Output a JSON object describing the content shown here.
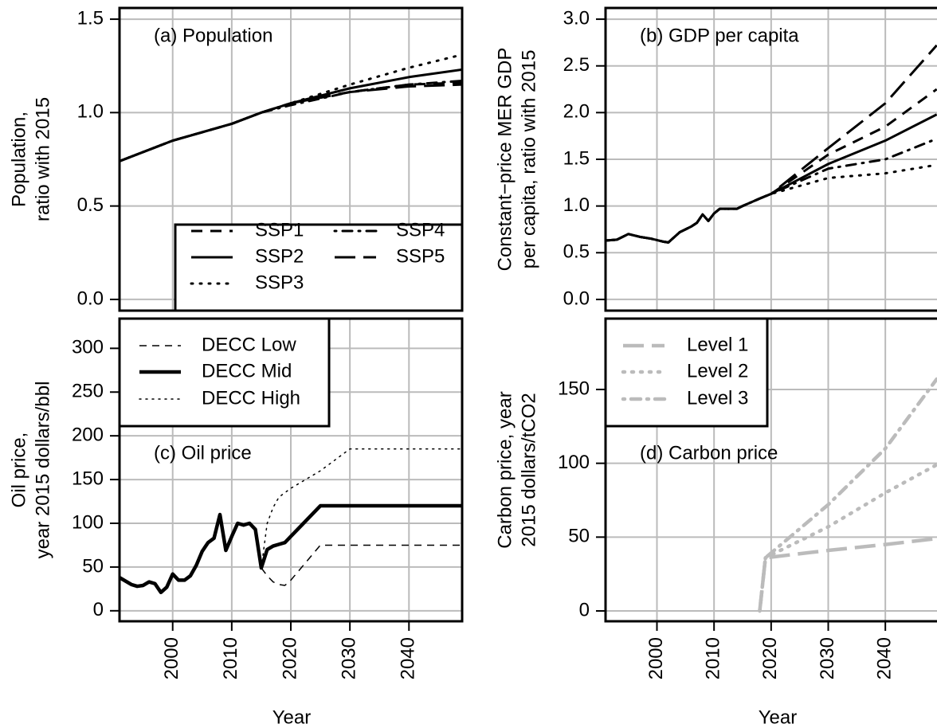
{
  "chart_data": [
    {
      "type": "line",
      "annotation": "(a) Population",
      "ylabel": [
        "Population,",
        "ratio with 2015"
      ],
      "x": [
        1991,
        2000,
        2010,
        2015,
        2020,
        2030,
        2040,
        2049
      ],
      "series": [
        {
          "name": "SSP1",
          "color": "#000000",
          "linestyle": "dashed",
          "values": [
            0.74,
            0.85,
            0.94,
            1.0,
            1.05,
            1.11,
            1.15,
            1.16
          ]
        },
        {
          "name": "SSP2",
          "color": "#000000",
          "linestyle": "solid",
          "values": [
            0.74,
            0.85,
            0.94,
            1.0,
            1.05,
            1.13,
            1.19,
            1.23
          ]
        },
        {
          "name": "SSP3",
          "color": "#000000",
          "linestyle": "dotted",
          "values": [
            0.74,
            0.85,
            0.94,
            1.0,
            1.05,
            1.15,
            1.24,
            1.31
          ]
        },
        {
          "name": "SSP4",
          "color": "#000000",
          "linestyle": "dotdash",
          "values": [
            0.74,
            0.85,
            0.94,
            1.0,
            1.04,
            1.11,
            1.15,
            1.17
          ]
        },
        {
          "name": "SSP5",
          "color": "#000000",
          "linestyle": "longdash",
          "values": [
            0.74,
            0.85,
            0.94,
            1.0,
            1.05,
            1.11,
            1.14,
            1.15
          ]
        }
      ],
      "xlim": [
        1991,
        2049
      ],
      "ylim": [
        -0.06,
        1.56
      ],
      "xticks": [
        2000,
        2010,
        2020,
        2030,
        2040
      ],
      "yticks": [
        {
          "value": 0,
          "label": "0.0"
        },
        0.5,
        {
          "value": 1,
          "label": "1.0"
        },
        1.5
      ],
      "grid": true,
      "legend": "bottomright",
      "legend_columns": 2,
      "xtick_labels": false
    },
    {
      "type": "line",
      "annotation": "(b) GDP per capita",
      "ylabel": [
        "Constant−price MER GDP",
        "per capita, ratio with 2015"
      ],
      "x": [
        1991,
        1993,
        1995,
        1997,
        1999,
        2001,
        2002,
        2004,
        2006,
        2007,
        2008,
        2009,
        2010,
        2011,
        2014,
        2015,
        2018,
        2020,
        2030,
        2040,
        2049
      ],
      "series": [
        {
          "name": "SSP1",
          "color": "#000000",
          "linestyle": "dashed",
          "values": [
            0.63,
            0.64,
            0.7,
            0.67,
            0.65,
            0.62,
            0.61,
            0.72,
            0.78,
            0.82,
            0.91,
            0.84,
            0.92,
            0.97,
            0.97,
            1.0,
            1.08,
            1.13,
            1.55,
            1.85,
            2.25
          ]
        },
        {
          "name": "SSP2",
          "color": "#000000",
          "linestyle": "solid",
          "values": [
            0.63,
            0.64,
            0.7,
            0.67,
            0.65,
            0.62,
            0.61,
            0.72,
            0.78,
            0.82,
            0.91,
            0.84,
            0.92,
            0.97,
            0.97,
            1.0,
            1.08,
            1.13,
            1.45,
            1.7,
            1.98
          ]
        },
        {
          "name": "SSP3",
          "color": "#000000",
          "linestyle": "dotted",
          "values": [
            0.63,
            0.64,
            0.7,
            0.67,
            0.65,
            0.62,
            0.61,
            0.72,
            0.78,
            0.82,
            0.91,
            0.84,
            0.92,
            0.97,
            0.97,
            1.0,
            1.08,
            1.13,
            1.3,
            1.35,
            1.44
          ]
        },
        {
          "name": "SSP4",
          "color": "#000000",
          "linestyle": "dotdash",
          "values": [
            0.63,
            0.64,
            0.7,
            0.67,
            0.65,
            0.62,
            0.61,
            0.72,
            0.78,
            0.82,
            0.91,
            0.84,
            0.92,
            0.97,
            0.97,
            1.0,
            1.08,
            1.13,
            1.4,
            1.5,
            1.72
          ]
        },
        {
          "name": "SSP5",
          "color": "#000000",
          "linestyle": "longdash",
          "values": [
            0.63,
            0.64,
            0.7,
            0.67,
            0.65,
            0.62,
            0.61,
            0.72,
            0.78,
            0.82,
            0.91,
            0.84,
            0.92,
            0.97,
            0.97,
            1.0,
            1.08,
            1.13,
            1.62,
            2.1,
            2.72
          ]
        }
      ],
      "xlim": [
        1991,
        2051
      ],
      "ylim": [
        -0.12,
        3.12
      ],
      "xticks": [
        2000,
        2010,
        2020,
        2030,
        2040
      ],
      "yticks": [
        {
          "value": 0,
          "label": "0.0"
        },
        0.5,
        {
          "value": 1,
          "label": "1.0"
        },
        1.5,
        {
          "value": 2,
          "label": "2.0"
        },
        2.5,
        {
          "value": 3,
          "label": "3.0"
        }
      ],
      "grid": true,
      "xtick_labels": false
    },
    {
      "type": "line",
      "annotation": "(c) Oil price",
      "ylabel": [
        "Oil price,",
        "year 2015 dollars/bbl"
      ],
      "xlabel": "Year",
      "x": [
        1991,
        1993,
        1994,
        1995,
        1996,
        1997,
        1998,
        1999,
        2000,
        2001,
        2002,
        2003,
        2004,
        2005,
        2006,
        2007,
        2008,
        2009,
        2010,
        2011,
        2012,
        2013,
        2014,
        2015,
        2016,
        2017,
        2018,
        2019,
        2020,
        2025,
        2030,
        2049
      ],
      "series": [
        {
          "name": "DECC Low",
          "color": "#000000",
          "linestyle": "thin-dashed",
          "values": [
            null,
            null,
            null,
            null,
            null,
            null,
            null,
            null,
            null,
            null,
            null,
            null,
            null,
            null,
            null,
            null,
            null,
            null,
            null,
            null,
            null,
            null,
            null,
            49,
            40,
            33,
            30,
            29,
            35,
            75,
            75,
            75
          ]
        },
        {
          "name": "DECC Mid",
          "color": "#000000",
          "linestyle": "thick-solid",
          "values": [
            38,
            30,
            28,
            29,
            33,
            31,
            21,
            27,
            42,
            35,
            35,
            40,
            52,
            68,
            78,
            83,
            110,
            69,
            85,
            100,
            98,
            100,
            93,
            49,
            70,
            74,
            76,
            78,
            85,
            120,
            120,
            120
          ]
        },
        {
          "name": "DECC High",
          "color": "#000000",
          "linestyle": "thin-dotted",
          "values": [
            null,
            null,
            null,
            null,
            null,
            null,
            null,
            null,
            null,
            null,
            null,
            null,
            null,
            null,
            null,
            null,
            null,
            null,
            null,
            null,
            null,
            null,
            null,
            49,
            100,
            118,
            130,
            135,
            140,
            160,
            185,
            185
          ]
        }
      ],
      "xlim": [
        1991,
        2049
      ],
      "ylim": [
        -12,
        334
      ],
      "xticks": [
        2000,
        2010,
        2020,
        2030,
        2040
      ],
      "yticks": [
        0,
        50,
        100,
        150,
        200,
        250,
        300
      ],
      "grid": true,
      "legend": "topleft",
      "legend_columns": 1,
      "xtick_labels": true
    },
    {
      "type": "line",
      "annotation": "(d) Carbon price",
      "ylabel": [
        "Carbon price, year",
        "2015 dollars/tCO2"
      ],
      "xlabel": "Year",
      "x": [
        2018,
        2019,
        2030,
        2040,
        2049
      ],
      "series": [
        {
          "name": "Level 1",
          "color": "#bbbbbb",
          "linestyle": "longdash",
          "values": [
            0,
            36,
            41,
            45,
            49
          ]
        },
        {
          "name": "Level 2",
          "color": "#bbbbbb",
          "linestyle": "dotted",
          "values": [
            0,
            36,
            57,
            80,
            99
          ]
        },
        {
          "name": "Level 3",
          "color": "#bbbbbb",
          "linestyle": "dotdash",
          "values": [
            0,
            36,
            72,
            110,
            157
          ]
        }
      ],
      "xlim": [
        1991,
        2051
      ],
      "ylim": [
        -7,
        198
      ],
      "xticks": [
        2000,
        2010,
        2020,
        2030,
        2040
      ],
      "yticks": [
        0,
        50,
        100,
        150
      ],
      "grid": true,
      "legend": "topleft",
      "legend_columns": 1,
      "xtick_labels": true
    }
  ]
}
